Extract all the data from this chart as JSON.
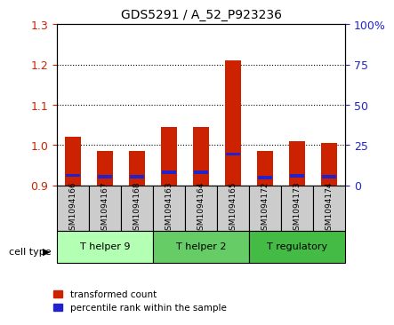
{
  "title": "GDS5291 / A_52_P923236",
  "samples": [
    "GSM1094166",
    "GSM1094167",
    "GSM1094168",
    "GSM1094163",
    "GSM1094164",
    "GSM1094165",
    "GSM1094172",
    "GSM1094173",
    "GSM1094174"
  ],
  "red_values": [
    1.02,
    0.985,
    0.985,
    1.045,
    1.045,
    1.21,
    0.985,
    1.01,
    1.005
  ],
  "blue_values": [
    0.925,
    0.922,
    0.921,
    0.932,
    0.932,
    0.978,
    0.919,
    0.924,
    0.921
  ],
  "ylim_left": [
    0.9,
    1.3
  ],
  "ylim_right": [
    0,
    100
  ],
  "yticks_left": [
    0.9,
    1.0,
    1.1,
    1.2,
    1.3
  ],
  "yticks_right": [
    0,
    25,
    50,
    75,
    100
  ],
  "cell_groups": [
    {
      "label": "T helper 9",
      "start": 0,
      "end": 3,
      "color": "#b3ffb3"
    },
    {
      "label": "T helper 2",
      "start": 3,
      "end": 6,
      "color": "#66cc66"
    },
    {
      "label": "T regulatory",
      "start": 6,
      "end": 9,
      "color": "#44bb44"
    }
  ],
  "cell_type_label": "cell type",
  "legend_red": "transformed count",
  "legend_blue": "percentile rank within the sample",
  "bar_color_red": "#cc2200",
  "bar_color_blue": "#2222cc",
  "bar_bottom": 0.9,
  "bar_width": 0.5,
  "grid_color": "#000000",
  "bg_color": "#ffffff",
  "tick_area_color": "#cccccc",
  "left_tick_color": "#cc2200",
  "right_tick_color": "#2222cc"
}
